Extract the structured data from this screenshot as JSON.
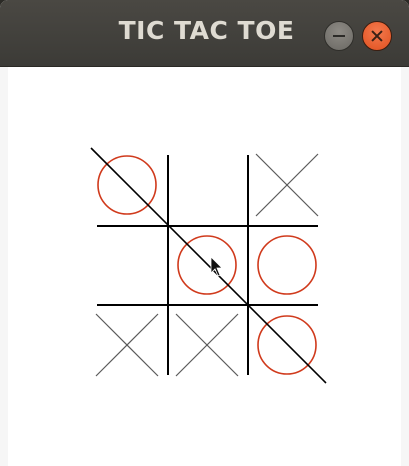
{
  "window": {
    "title": "TIC TAC TOE"
  },
  "board": {
    "cells": [
      [
        "O",
        "",
        "X"
      ],
      [
        "",
        "O",
        "O"
      ],
      [
        "X",
        "X",
        "O"
      ]
    ],
    "win_line": "diagonal-top-left-to-bottom-right"
  },
  "colors": {
    "o_mark": "#d03a1c",
    "x_mark": "#5a5a5a",
    "grid": "#000000",
    "close_button": "#e95420"
  },
  "icons": {
    "minimize": "minimize-icon",
    "close": "close-icon",
    "cursor": "mouse-pointer-icon"
  }
}
